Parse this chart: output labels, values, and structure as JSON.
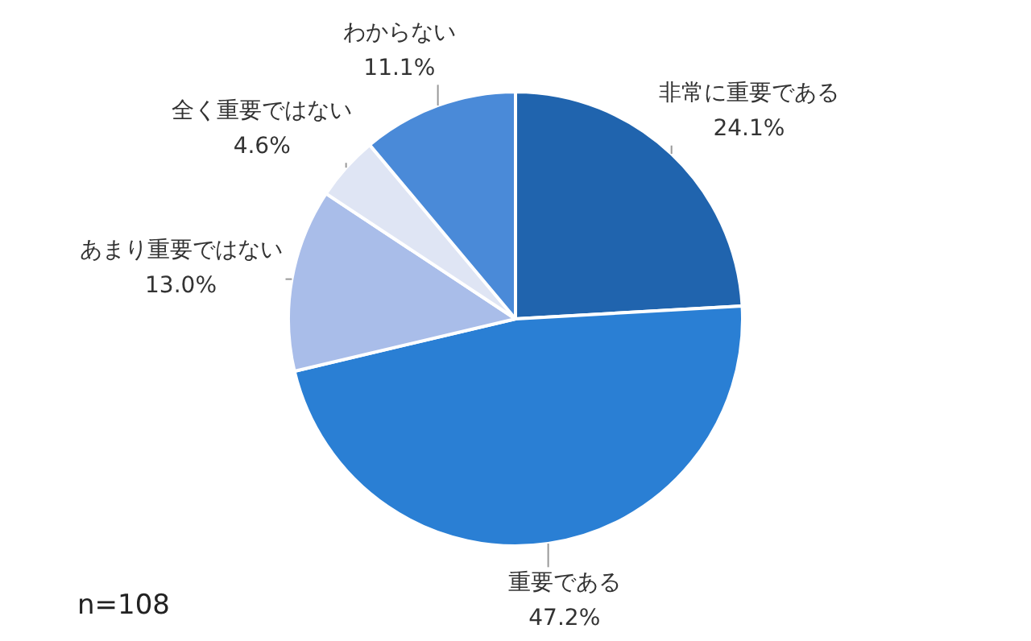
{
  "chart_data": {
    "type": "pie",
    "categories": [
      "非常に重要である",
      "重要である",
      "あまり重要ではない",
      "全く重要ではない",
      "わからない"
    ],
    "values": [
      24.1,
      47.2,
      13.0,
      4.6,
      11.1
    ],
    "value_labels": [
      "24.1%",
      "47.2%",
      "13.0%",
      "4.6%",
      "11.1%"
    ],
    "colors": [
      "#2064ae",
      "#2a7fd4",
      "#a9bde9",
      "#dfe5f4",
      "#4a8ad8"
    ],
    "annotations": [
      "n=108"
    ],
    "legend": false
  }
}
